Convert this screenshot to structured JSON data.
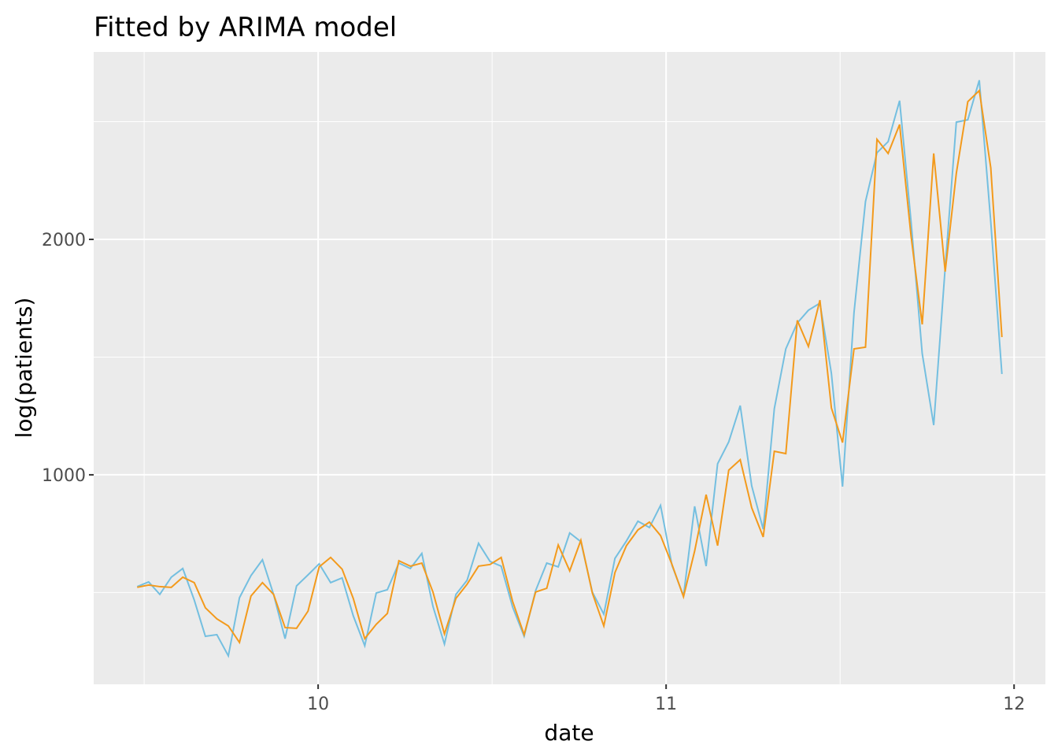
{
  "chart_data": {
    "type": "line",
    "title": "Fitted by ARIMA model",
    "x_label": "date",
    "y_label": "log(patients)",
    "x": [
      9.48,
      9.513,
      9.545,
      9.578,
      9.611,
      9.644,
      9.676,
      9.709,
      9.742,
      9.774,
      9.807,
      9.84,
      9.872,
      9.905,
      9.938,
      9.971,
      10.003,
      10.036,
      10.069,
      10.101,
      10.134,
      10.167,
      10.199,
      10.232,
      10.265,
      10.298,
      10.33,
      10.363,
      10.396,
      10.428,
      10.461,
      10.494,
      10.526,
      10.559,
      10.592,
      10.625,
      10.657,
      10.69,
      10.723,
      10.755,
      10.788,
      10.821,
      10.853,
      10.886,
      10.919,
      10.952,
      10.984,
      11.017,
      11.05,
      11.082,
      11.115,
      11.148,
      11.18,
      11.213,
      11.246,
      11.279,
      11.311,
      11.344,
      11.377,
      11.409,
      11.442,
      11.475,
      11.507,
      11.54,
      11.573,
      11.606,
      11.638,
      11.671,
      11.704,
      11.736,
      11.769,
      11.802,
      11.834,
      11.867,
      11.9,
      11.933,
      11.965
    ],
    "series": [
      {
        "color": "#74bfe0",
        "values": [
          525,
          545,
          492,
          565,
          602,
          468,
          314,
          321,
          231,
          478,
          572,
          639,
          492,
          304,
          528,
          575,
          622,
          542,
          562,
          401,
          274,
          498,
          512,
          625,
          602,
          666,
          441,
          281,
          492,
          552,
          709,
          632,
          612,
          438,
          314,
          508,
          625,
          609,
          753,
          716,
          502,
          408,
          645,
          719,
          803,
          776,
          870,
          615,
          485,
          866,
          612,
          1047,
          1140,
          1294,
          953,
          769,
          1281,
          1535,
          1645,
          1699,
          1729,
          1431,
          950,
          1689,
          2161,
          2368,
          2415,
          2589,
          2074,
          1515,
          1211,
          1880,
          2498,
          2508,
          2676,
          2074,
          1428
        ]
      },
      {
        "color": "#f39a1c",
        "values": [
          522,
          532,
          525,
          522,
          565,
          542,
          435,
          388,
          358,
          288,
          485,
          542,
          492,
          351,
          348,
          421,
          609,
          649,
          599,
          475,
          304,
          365,
          411,
          635,
          612,
          625,
          502,
          324,
          475,
          535,
          612,
          619,
          649,
          462,
          321,
          502,
          518,
          702,
          592,
          722,
          498,
          358,
          585,
          699,
          766,
          799,
          742,
          619,
          482,
          676,
          916,
          699,
          1020,
          1064,
          860,
          736,
          1100,
          1090,
          1656,
          1545,
          1742,
          1284,
          1137,
          1535,
          1542,
          2425,
          2365,
          2488,
          2013,
          1639,
          2365,
          1863,
          2281,
          2585,
          2632,
          2304,
          1585
        ]
      }
    ],
    "xlim": [
      9.355,
      12.09
    ],
    "xticks": [
      10,
      11,
      12
    ],
    "minor_xticks": [
      9.5,
      10.5,
      11.5
    ],
    "ylim": [
      110,
      2796
    ],
    "yticks": [
      1000,
      2000
    ],
    "minor_yticks": [
      500,
      1500,
      2500
    ],
    "grid": true
  }
}
